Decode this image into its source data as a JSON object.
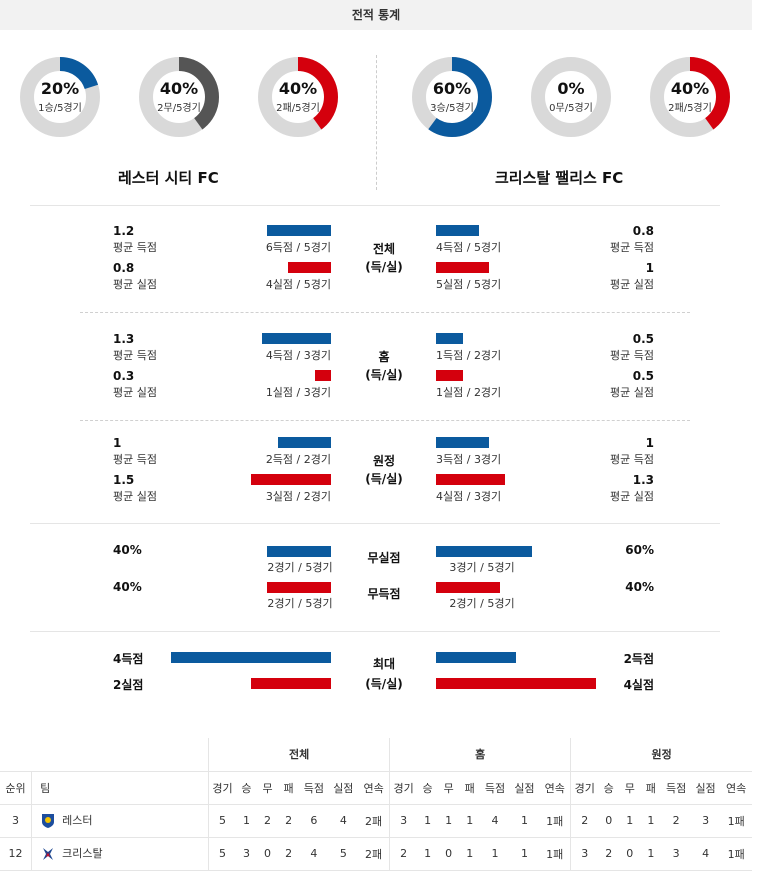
{
  "header": {
    "title": "전적 통계"
  },
  "left_team": {
    "name": "레스터 시티 FC",
    "donuts": [
      {
        "pct_label": "20%",
        "sub": "1승/5경기",
        "fraction": 0.2,
        "color": "#0b5a9e"
      },
      {
        "pct_label": "40%",
        "sub": "2무/5경기",
        "fraction": 0.4,
        "color": "#555555"
      },
      {
        "pct_label": "40%",
        "sub": "2패/5경기",
        "fraction": 0.4,
        "color": "#d4000d"
      }
    ]
  },
  "right_team": {
    "name": "크리스탈 팰리스 FC",
    "donuts": [
      {
        "pct_label": "60%",
        "sub": "3승/5경기",
        "fraction": 0.6,
        "color": "#0b5a9e"
      },
      {
        "pct_label": "0%",
        "sub": "0무/5경기",
        "fraction": 0.0,
        "color": "#555555"
      },
      {
        "pct_label": "40%",
        "sub": "2패/5경기",
        "fraction": 0.4,
        "color": "#d4000d"
      }
    ]
  },
  "labels": {
    "avg_scored": "평균 득점",
    "avg_conceded": "평균 실점"
  },
  "sections": [
    {
      "mid_line1": "전체",
      "mid_line2": "(득/실)",
      "left": {
        "scored_val": "1.2",
        "scored_bar": "6득점 / 5경기",
        "scored_frac": 0.4,
        "conceded_val": "0.8",
        "conceded_bar": "4실점 / 5경기",
        "conceded_frac": 0.27
      },
      "right": {
        "scored_val": "0.8",
        "scored_bar": "4득점 / 5경기",
        "scored_frac": 0.27,
        "conceded_val": "1",
        "conceded_bar": "5실점 / 5경기",
        "conceded_frac": 0.33
      }
    },
    {
      "mid_line1": "홈",
      "mid_line2": "(득/실)",
      "left": {
        "scored_val": "1.3",
        "scored_bar": "4득점 / 3경기",
        "scored_frac": 0.43,
        "conceded_val": "0.3",
        "conceded_bar": "1실점 / 3경기",
        "conceded_frac": 0.1
      },
      "right": {
        "scored_val": "0.5",
        "scored_bar": "1득점 / 2경기",
        "scored_frac": 0.17,
        "conceded_val": "0.5",
        "conceded_bar": "1실점 / 2경기",
        "conceded_frac": 0.17
      }
    },
    {
      "mid_line1": "원정",
      "mid_line2": "(득/실)",
      "left": {
        "scored_val": "1",
        "scored_bar": "2득점 / 2경기",
        "scored_frac": 0.33,
        "conceded_val": "1.5",
        "conceded_bar": "3실점 / 2경기",
        "conceded_frac": 0.5
      },
      "right": {
        "scored_val": "1",
        "scored_bar": "3득점 / 3경기",
        "scored_frac": 0.33,
        "conceded_val": "1.3",
        "conceded_bar": "4실점 / 3경기",
        "conceded_frac": 0.43
      }
    }
  ],
  "clean_sheets": {
    "mid1": "무실점",
    "mid2": "무득점",
    "left": {
      "cs_val": "40%",
      "cs_bar": "2경기 / 5경기",
      "cs_frac": 0.4,
      "fts_val": "40%",
      "fts_bar": "2경기 / 5경기",
      "fts_frac": 0.4
    },
    "right": {
      "cs_val": "60%",
      "cs_bar": "3경기 / 5경기",
      "cs_frac": 0.6,
      "fts_val": "40%",
      "fts_bar": "2경기 / 5경기",
      "fts_frac": 0.4
    }
  },
  "max": {
    "mid_line1": "최대",
    "mid_line2": "(득/실)",
    "left": {
      "scored": "4득점",
      "scored_frac": 1.0,
      "conceded": "2실점",
      "conceded_frac": 0.5
    },
    "right": {
      "scored": "2득점",
      "scored_frac": 0.5,
      "conceded": "4실점",
      "conceded_frac": 1.0
    }
  },
  "standings": {
    "group_headers": [
      "전체",
      "홈",
      "원정"
    ],
    "col_rank": "순위",
    "col_team": "팀",
    "sub_headers": [
      "경기",
      "승",
      "무",
      "패",
      "득점",
      "실점",
      "연속"
    ],
    "rows": [
      {
        "rank": "3",
        "team": "레스터",
        "logo": "leicester-logo",
        "total": [
          "5",
          "1",
          "2",
          "2",
          "6",
          "4",
          "2패"
        ],
        "home": [
          "3",
          "1",
          "1",
          "1",
          "4",
          "1",
          "1패"
        ],
        "away": [
          "2",
          "0",
          "1",
          "1",
          "2",
          "3",
          "1패"
        ]
      },
      {
        "rank": "12",
        "team": "크리스탈",
        "logo": "crystal-palace-logo",
        "total": [
          "5",
          "3",
          "0",
          "2",
          "4",
          "5",
          "2패"
        ],
        "home": [
          "2",
          "1",
          "0",
          "1",
          "1",
          "1",
          "1패"
        ],
        "away": [
          "3",
          "2",
          "0",
          "1",
          "3",
          "4",
          "1패"
        ]
      }
    ]
  }
}
